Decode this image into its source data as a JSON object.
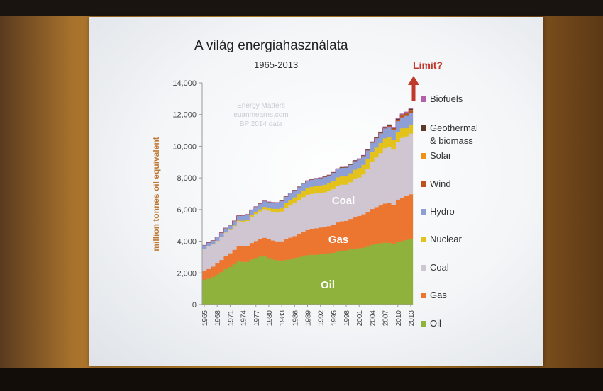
{
  "slide": {
    "title": "A világ energiahasználata",
    "subtitle": "1965-2013",
    "limit_label": "Limit?",
    "watermark": [
      "Energy Matters",
      "euanmearns.com",
      "BP 2014 data"
    ]
  },
  "chart_data": {
    "type": "area",
    "title": "A világ energiahasználata",
    "subtitle": "1965-2013",
    "xlabel": "",
    "ylabel": "million tonnes oil equivalent",
    "x": [
      1965,
      1966,
      1967,
      1968,
      1969,
      1970,
      1971,
      1972,
      1973,
      1974,
      1975,
      1976,
      1977,
      1978,
      1979,
      1980,
      1981,
      1982,
      1983,
      1984,
      1985,
      1986,
      1987,
      1988,
      1989,
      1990,
      1991,
      1992,
      1993,
      1994,
      1995,
      1996,
      1997,
      1998,
      1999,
      2000,
      2001,
      2002,
      2003,
      2004,
      2005,
      2006,
      2007,
      2008,
      2009,
      2010,
      2011,
      2012,
      2013
    ],
    "xticks": [
      "1965",
      "1968",
      "1971",
      "1974",
      "1977",
      "1980",
      "1983",
      "1986",
      "1989",
      "1992",
      "1995",
      "1998",
      "2001",
      "2004",
      "2007",
      "2010",
      "2013"
    ],
    "ylim": [
      0,
      14000
    ],
    "yticks": [
      "0",
      "2,000",
      "4,000",
      "6,000",
      "8,000",
      "10,000",
      "12,000",
      "14,000"
    ],
    "grid": false,
    "legend_position": "right",
    "series": [
      {
        "name": "Oil",
        "color": "#8fb23c",
        "values": [
          1530,
          1640,
          1750,
          1900,
          2060,
          2250,
          2380,
          2560,
          2740,
          2700,
          2700,
          2850,
          2950,
          3030,
          3050,
          2950,
          2850,
          2800,
          2780,
          2830,
          2850,
          2940,
          2990,
          3080,
          3130,
          3140,
          3150,
          3190,
          3180,
          3240,
          3280,
          3350,
          3420,
          3420,
          3490,
          3540,
          3560,
          3600,
          3650,
          3780,
          3840,
          3880,
          3920,
          3900,
          3840,
          3970,
          4010,
          4080,
          4130
        ]
      },
      {
        "name": "Gas",
        "color": "#ec7530",
        "values": [
          580,
          610,
          650,
          700,
          760,
          810,
          860,
          900,
          960,
          980,
          990,
          1040,
          1070,
          1110,
          1170,
          1190,
          1200,
          1200,
          1220,
          1330,
          1380,
          1390,
          1460,
          1520,
          1580,
          1630,
          1670,
          1680,
          1710,
          1720,
          1770,
          1840,
          1840,
          1870,
          1920,
          2000,
          2040,
          2100,
          2180,
          2260,
          2320,
          2380,
          2460,
          2540,
          2470,
          2660,
          2720,
          2790,
          2840
        ]
      },
      {
        "name": "Coal",
        "color": "#cfc6d1",
        "values": [
          1420,
          1430,
          1400,
          1420,
          1450,
          1490,
          1470,
          1500,
          1560,
          1560,
          1590,
          1660,
          1700,
          1740,
          1800,
          1790,
          1810,
          1820,
          1880,
          1950,
          2030,
          2070,
          2140,
          2190,
          2230,
          2220,
          2200,
          2190,
          2200,
          2210,
          2250,
          2310,
          2320,
          2290,
          2320,
          2400,
          2430,
          2520,
          2750,
          2990,
          3130,
          3310,
          3500,
          3520,
          3480,
          3640,
          3800,
          3750,
          3830
        ]
      },
      {
        "name": "Nuclear",
        "color": "#e3c21b",
        "values": [
          6,
          8,
          10,
          13,
          16,
          18,
          25,
          35,
          45,
          60,
          80,
          100,
          120,
          140,
          150,
          170,
          200,
          230,
          260,
          300,
          350,
          380,
          400,
          420,
          430,
          450,
          470,
          470,
          480,
          500,
          520,
          540,
          540,
          550,
          570,
          580,
          600,
          610,
          600,
          620,
          630,
          635,
          620,
          620,
          610,
          620,
          600,
          560,
          560
        ]
      },
      {
        "name": "Hydro",
        "color": "#8e9fd6",
        "values": [
          210,
          225,
          230,
          240,
          250,
          265,
          280,
          290,
          300,
          320,
          330,
          330,
          340,
          355,
          370,
          380,
          385,
          390,
          405,
          415,
          425,
          430,
          435,
          445,
          445,
          455,
          465,
          465,
          490,
          490,
          510,
          520,
          530,
          530,
          535,
          545,
          540,
          550,
          555,
          570,
          590,
          610,
          625,
          650,
          655,
          690,
          700,
          740,
          760
        ]
      },
      {
        "name": "Wind",
        "color": "#c0501e",
        "values": [
          0,
          0,
          0,
          0,
          0,
          0,
          0,
          0,
          0,
          0,
          0,
          0,
          0,
          0,
          0,
          0,
          0,
          0,
          0,
          0,
          0,
          0,
          0,
          0,
          0,
          0,
          1,
          1,
          1,
          2,
          2,
          2,
          2,
          3,
          4,
          7,
          9,
          12,
          15,
          19,
          23,
          30,
          39,
          50,
          62,
          78,
          98,
          118,
          140
        ]
      },
      {
        "name": "Solar",
        "color": "#f0901a",
        "values": [
          0,
          0,
          0,
          0,
          0,
          0,
          0,
          0,
          0,
          0,
          0,
          0,
          0,
          0,
          0,
          0,
          0,
          0,
          0,
          0,
          0,
          0,
          0,
          0,
          0,
          0,
          0,
          0,
          0,
          0,
          0,
          0,
          0,
          0,
          0,
          0,
          0,
          0,
          1,
          1,
          1,
          2,
          2,
          3,
          5,
          8,
          15,
          22,
          28
        ]
      },
      {
        "name": "Geothermal & biomass",
        "color": "#5b3a28",
        "values": [
          5,
          5,
          5,
          5,
          5,
          6,
          6,
          6,
          7,
          7,
          8,
          8,
          9,
          9,
          10,
          11,
          12,
          13,
          14,
          15,
          16,
          17,
          18,
          19,
          20,
          21,
          22,
          23,
          24,
          25,
          26,
          27,
          28,
          29,
          30,
          32,
          34,
          36,
          38,
          40,
          42,
          44,
          46,
          50,
          54,
          58,
          62,
          66,
          70
        ]
      },
      {
        "name": "Biofuels",
        "color": "#b35fa9",
        "values": [
          0,
          0,
          0,
          0,
          0,
          0,
          0,
          0,
          0,
          0,
          0,
          0,
          0,
          0,
          0,
          0,
          0,
          0,
          0,
          0,
          0,
          0,
          0,
          0,
          0,
          0,
          0,
          0,
          0,
          0,
          0,
          0,
          0,
          0,
          0,
          8,
          9,
          10,
          12,
          14,
          16,
          20,
          26,
          34,
          38,
          45,
          50,
          52,
          60
        ]
      }
    ],
    "legend_order": [
      "Biofuels",
      "Geothermal & biomass",
      "Solar",
      "Wind",
      "Hydro",
      "Nuclear",
      "Coal",
      "Gas",
      "Oil"
    ],
    "area_labels": [
      "Coal",
      "Gas",
      "Oil"
    ]
  }
}
